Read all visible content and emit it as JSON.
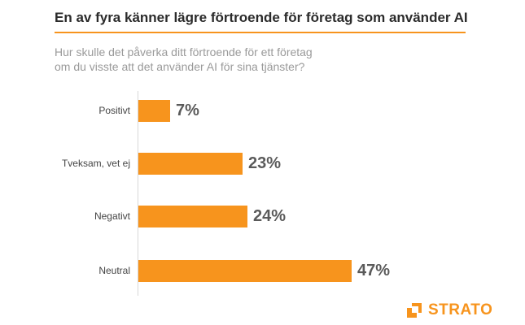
{
  "header": {
    "title": "En av fyra känner lägre förtroende för företag som använder AI",
    "subtitle_line1": "Hur skulle det påverka ditt förtroende för ett företag",
    "subtitle_line2": "om du visste att det använder AI för sina tjänster?"
  },
  "brand": {
    "name": "STRATO",
    "accent": "#f7941d"
  },
  "chart_data": {
    "type": "bar",
    "orientation": "horizontal",
    "title": "En av fyra känner lägre förtroende för företag som använder AI",
    "subtitle": "Hur skulle det påverka ditt förtroende för ett företag om du visste att det använder AI för sina tjänster?",
    "categories": [
      "Positivt",
      "Tveksam, vet ej",
      "Negativt",
      "Neutral"
    ],
    "values": [
      7,
      23,
      24,
      47
    ],
    "value_labels": [
      "7%",
      "23%",
      "24%",
      "47%"
    ],
    "unit": "%",
    "xlim": [
      0,
      47
    ],
    "grid": false,
    "bar_color": "#f7941d"
  }
}
